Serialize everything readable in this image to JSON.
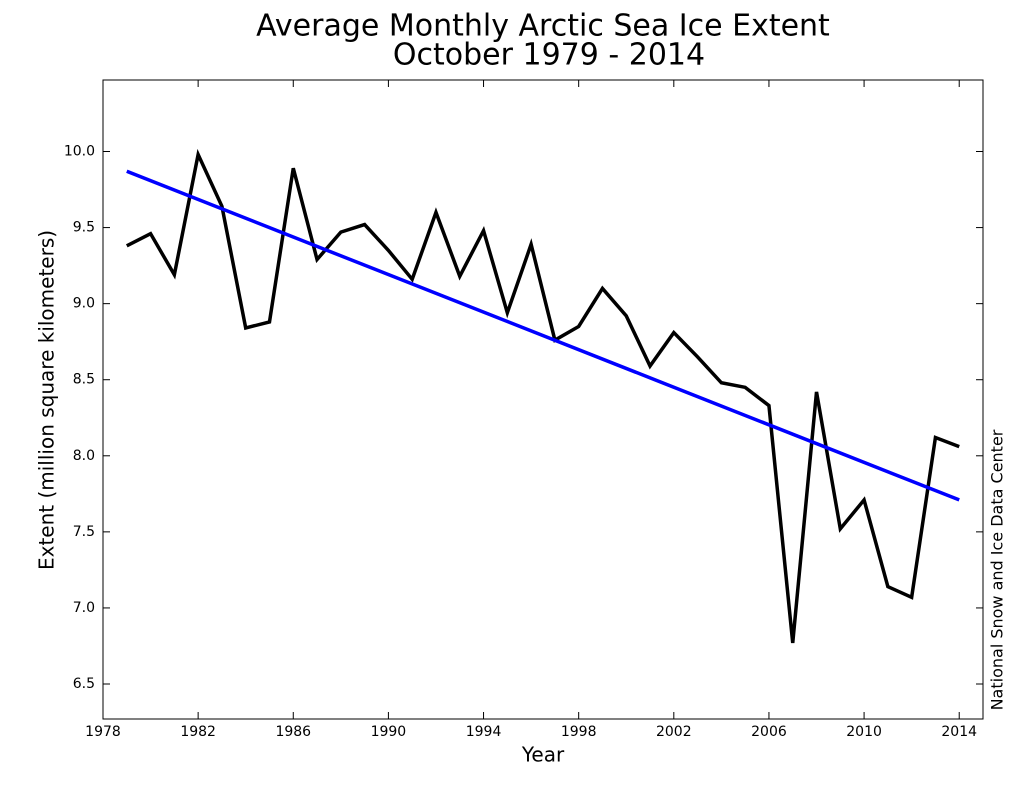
{
  "chart_data": {
    "type": "line",
    "title": "Average Monthly Arctic Sea Ice Extent",
    "subtitle": "October 1979 - 2014",
    "xlabel": "Year",
    "ylabel": "Extent (million square kilometers)",
    "credit": "National Snow and Ice Data Center",
    "x": [
      1979,
      1980,
      1981,
      1982,
      1983,
      1984,
      1985,
      1986,
      1987,
      1988,
      1989,
      1990,
      1991,
      1992,
      1993,
      1994,
      1995,
      1996,
      1997,
      1998,
      1999,
      2000,
      2001,
      2002,
      2003,
      2004,
      2005,
      2006,
      2007,
      2008,
      2009,
      2010,
      2011,
      2012,
      2013,
      2014
    ],
    "series": [
      {
        "color": "#000000",
        "values": [
          9.38,
          9.46,
          9.19,
          9.98,
          9.64,
          8.84,
          8.88,
          9.89,
          9.29,
          9.47,
          9.52,
          9.35,
          9.16,
          9.6,
          9.18,
          9.48,
          8.94,
          9.39,
          8.76,
          8.85,
          9.1,
          8.92,
          8.59,
          8.81,
          8.65,
          8.48,
          8.45,
          8.33,
          6.77,
          8.42,
          7.52,
          7.71,
          7.14,
          7.07,
          8.12,
          8.06
        ]
      }
    ],
    "trend": {
      "color": "#0000ff",
      "x": [
        1979,
        2014
      ],
      "values": [
        9.87,
        7.71
      ]
    },
    "xlim": [
      1978,
      2015
    ],
    "ylim": [
      6.27,
      10.47
    ],
    "xticks": [
      1978,
      1982,
      1986,
      1990,
      1994,
      1998,
      2002,
      2006,
      2010,
      2014
    ],
    "yticks": [
      6.5,
      {
        "value": 7,
        "label": "7.0"
      },
      7.5,
      {
        "value": 8,
        "label": "8.0"
      },
      8.5,
      {
        "value": 9,
        "label": "9.0"
      },
      9.5,
      {
        "value": 10,
        "label": "10.0"
      }
    ]
  }
}
